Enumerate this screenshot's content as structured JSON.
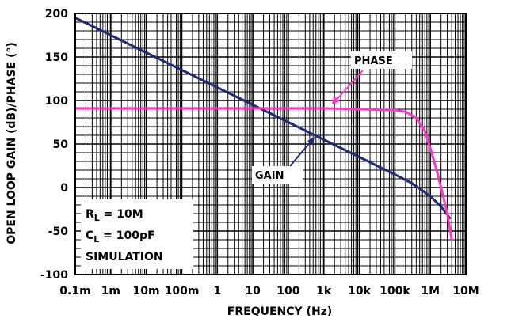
{
  "chart_data": {
    "type": "line",
    "title": "",
    "xlabel": "FREQUENCY (Hz)",
    "ylabel": "OPEN LOOP GAIN (dB)/PHASE (°)",
    "xscale": "log",
    "xlim": [
      0.0001,
      10000000
    ],
    "ylim": [
      -100,
      200
    ],
    "grid": true,
    "x_tick_values": [
      0.0001,
      0.001,
      0.01,
      0.1,
      1,
      10,
      100,
      1000,
      10000,
      100000,
      1000000,
      10000000
    ],
    "x_tick_labels": [
      "0.1m",
      "1m",
      "10m",
      "100m",
      "1",
      "10",
      "100",
      "1k",
      "10k",
      "100k",
      "1M",
      "10M"
    ],
    "y_ticks": [
      200,
      150,
      100,
      50,
      0,
      -50,
      -100
    ],
    "series": [
      {
        "name": "GAIN",
        "color": "#1f2a78",
        "x": [
          0.0001,
          0.001,
          0.01,
          0.1,
          1,
          10,
          100,
          1000,
          10000,
          100000,
          300000,
          1000000,
          2000000,
          3500000
        ],
        "y": [
          195,
          175,
          155,
          135,
          115,
          95,
          75,
          55,
          35,
          15,
          5,
          -10,
          -22,
          -35
        ]
      },
      {
        "name": "PHASE",
        "color": "#ff33cc",
        "x": [
          0.0001,
          0.001,
          0.01,
          0.1,
          1,
          10,
          100,
          1000,
          10000,
          100000,
          200000,
          400000,
          700000,
          1000000,
          1500000,
          2000000,
          3000000,
          4000000
        ],
        "y": [
          91,
          91,
          91,
          91,
          91,
          91,
          91,
          91,
          90,
          89,
          87,
          80,
          65,
          45,
          20,
          0,
          -30,
          -60
        ]
      }
    ],
    "annotations": [
      "PHASE",
      "GAIN"
    ]
  },
  "info_box": {
    "rl_prefix": "R",
    "rl_sub": "L",
    "rl_value": " = 10M",
    "cl_prefix": "C",
    "cl_sub": "L",
    "cl_value": " = 100pF",
    "mode": "SIMULATION"
  }
}
